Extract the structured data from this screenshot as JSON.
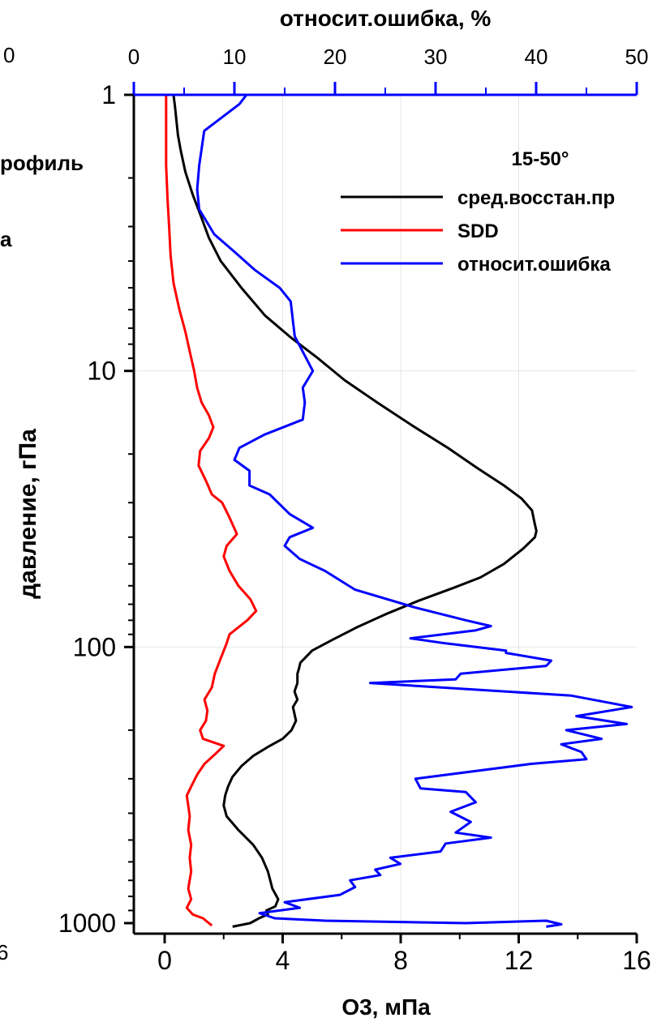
{
  "chart_data": {
    "type": "line",
    "top_axis": {
      "label": "относит.ошибка, %",
      "ticks": [
        "0",
        "10",
        "20",
        "30",
        "40",
        "50"
      ],
      "cut_tick": "0",
      "range": [
        0,
        50
      ],
      "color": "#0000ff"
    },
    "bottom_axis": {
      "label": "O3, мПа",
      "ticks": [
        "0",
        "4",
        "8",
        "12",
        "16"
      ],
      "cut_tick": "6",
      "range": [
        -1,
        16
      ]
    },
    "left_axis": {
      "label": "давление, гПа",
      "ticks": [
        "1",
        "10",
        "100",
        "1000"
      ],
      "scale": "log",
      "reversed": true,
      "range": [
        1,
        1050
      ]
    },
    "grid": true,
    "legend": {
      "title": "15-50°",
      "position": "top-right",
      "entries": [
        {
          "label": "сред.восстан.пр",
          "color": "#000000"
        },
        {
          "label": "SDD",
          "color": "#ff0000"
        },
        {
          "label": "относит.ошибка",
          "color": "#0000ff"
        }
      ]
    },
    "cut_labels": [
      "рофиль",
      "а"
    ],
    "series": [
      {
        "name": "сред.восстан.пр",
        "axis": "bottom",
        "color": "#000000",
        "points": [
          [
            0.3,
            1
          ],
          [
            0.35,
            1.1
          ],
          [
            0.45,
            1.4
          ],
          [
            0.55,
            1.6
          ],
          [
            0.7,
            1.9
          ],
          [
            0.95,
            2.3
          ],
          [
            1.2,
            2.7
          ],
          [
            1.5,
            3.3
          ],
          [
            1.9,
            4
          ],
          [
            2.6,
            5
          ],
          [
            3.4,
            6.3
          ],
          [
            4.3,
            7.6
          ],
          [
            5.2,
            9
          ],
          [
            6.1,
            10.8
          ],
          [
            7.2,
            13
          ],
          [
            8.4,
            15.8
          ],
          [
            9.6,
            19
          ],
          [
            10.6,
            22.5
          ],
          [
            11.5,
            26
          ],
          [
            12.1,
            29
          ],
          [
            12.45,
            32
          ],
          [
            12.5,
            34
          ],
          [
            12.55,
            36
          ],
          [
            12.6,
            38
          ],
          [
            12.55,
            40
          ],
          [
            12.15,
            44
          ],
          [
            11.5,
            50
          ],
          [
            10.7,
            56
          ],
          [
            9.8,
            61
          ],
          [
            8.6,
            68
          ],
          [
            7.5,
            76
          ],
          [
            6.5,
            85
          ],
          [
            5.7,
            94
          ],
          [
            5.0,
            103
          ],
          [
            4.6,
            114
          ],
          [
            4.55,
            120
          ],
          [
            4.5,
            125
          ],
          [
            4.5,
            135
          ],
          [
            4.4,
            145
          ],
          [
            4.5,
            155
          ],
          [
            4.35,
            165
          ],
          [
            4.4,
            175
          ],
          [
            4.45,
            185
          ],
          [
            4.3,
            200
          ],
          [
            4.0,
            215
          ],
          [
            3.5,
            230
          ],
          [
            3.0,
            248
          ],
          [
            2.6,
            270
          ],
          [
            2.3,
            295
          ],
          [
            2.15,
            320
          ],
          [
            2.05,
            345
          ],
          [
            2.0,
            375
          ],
          [
            2.1,
            410
          ],
          [
            2.5,
            460
          ],
          [
            3.0,
            520
          ],
          [
            3.3,
            580
          ],
          [
            3.5,
            650
          ],
          [
            3.65,
            750
          ],
          [
            3.85,
            820
          ],
          [
            3.75,
            870
          ],
          [
            3.45,
            900
          ],
          [
            3.5,
            930
          ],
          [
            3.2,
            960
          ],
          [
            2.9,
            1000
          ],
          [
            2.3,
            1030
          ]
        ]
      },
      {
        "name": "SDD",
        "axis": "bottom",
        "color": "#ff0000",
        "points": [
          [
            0.05,
            1
          ],
          [
            0.05,
            1.4
          ],
          [
            0.05,
            1.8
          ],
          [
            0.1,
            2.4
          ],
          [
            0.15,
            3
          ],
          [
            0.2,
            3.8
          ],
          [
            0.3,
            4.8
          ],
          [
            0.5,
            6
          ],
          [
            0.7,
            7.2
          ],
          [
            0.85,
            8.5
          ],
          [
            1.0,
            10
          ],
          [
            1.1,
            11.5
          ],
          [
            1.25,
            13
          ],
          [
            1.5,
            14.5
          ],
          [
            1.65,
            16
          ],
          [
            1.5,
            17.5
          ],
          [
            1.2,
            19.5
          ],
          [
            1.15,
            22
          ],
          [
            1.4,
            25
          ],
          [
            1.6,
            28
          ],
          [
            1.95,
            30
          ],
          [
            2.2,
            34
          ],
          [
            2.45,
            39
          ],
          [
            2.1,
            43
          ],
          [
            2.0,
            47
          ],
          [
            2.2,
            53
          ],
          [
            2.5,
            60
          ],
          [
            2.9,
            67
          ],
          [
            3.1,
            74
          ],
          [
            2.8,
            80
          ],
          [
            2.2,
            90
          ],
          [
            2.1,
            97
          ],
          [
            1.9,
            110
          ],
          [
            1.7,
            125
          ],
          [
            1.6,
            140
          ],
          [
            1.35,
            155
          ],
          [
            1.45,
            170
          ],
          [
            1.4,
            185
          ],
          [
            1.2,
            200
          ],
          [
            1.3,
            215
          ],
          [
            2.0,
            228
          ],
          [
            1.7,
            245
          ],
          [
            1.35,
            265
          ],
          [
            1.1,
            290
          ],
          [
            0.9,
            320
          ],
          [
            0.75,
            345
          ],
          [
            0.8,
            375
          ],
          [
            0.85,
            410
          ],
          [
            0.8,
            460
          ],
          [
            0.9,
            520
          ],
          [
            0.85,
            580
          ],
          [
            0.9,
            650
          ],
          [
            0.8,
            750
          ],
          [
            0.9,
            820
          ],
          [
            0.75,
            880
          ],
          [
            0.95,
            930
          ],
          [
            1.3,
            960
          ],
          [
            1.45,
            990
          ],
          [
            1.6,
            1020
          ]
        ]
      },
      {
        "name": "относит.ошибка",
        "axis": "top",
        "color": "#0000ff",
        "points": [
          [
            11.2,
            1
          ],
          [
            10.5,
            1.08
          ],
          [
            7,
            1.35
          ],
          [
            6.5,
            1.8
          ],
          [
            6.3,
            2.2
          ],
          [
            6.5,
            2.6
          ],
          [
            8,
            3.2
          ],
          [
            10,
            3.7
          ],
          [
            12,
            4.3
          ],
          [
            14.5,
            5
          ],
          [
            15.6,
            5.6
          ],
          [
            15.8,
            6.5
          ],
          [
            16,
            7.5
          ],
          [
            17.8,
            10
          ],
          [
            16.8,
            11.5
          ],
          [
            17,
            13
          ],
          [
            16.8,
            15
          ],
          [
            13,
            17
          ],
          [
            10.5,
            19
          ],
          [
            10,
            21
          ],
          [
            11.5,
            23
          ],
          [
            11.5,
            26
          ],
          [
            13.5,
            28
          ],
          [
            15.5,
            33
          ],
          [
            17.8,
            37
          ],
          [
            15.5,
            40
          ],
          [
            15,
            43
          ],
          [
            16.5,
            48
          ],
          [
            19,
            53
          ],
          [
            22,
            62
          ],
          [
            28,
            72
          ],
          [
            33,
            80
          ],
          [
            35.5,
            84
          ],
          [
            34,
            87
          ],
          [
            27.5,
            93
          ],
          [
            31,
            97
          ],
          [
            37,
            103
          ],
          [
            37,
            105
          ],
          [
            41.5,
            112
          ],
          [
            41,
            117
          ],
          [
            32.5,
            125
          ],
          [
            32,
            131
          ],
          [
            23.5,
            135
          ],
          [
            43.5,
            150
          ],
          [
            49.5,
            165
          ],
          [
            44,
            178
          ],
          [
            49,
            190
          ],
          [
            43,
            200
          ],
          [
            46.5,
            215
          ],
          [
            42.5,
            225
          ],
          [
            44.5,
            240
          ],
          [
            45,
            255
          ],
          [
            39.5,
            265
          ],
          [
            28,
            300
          ],
          [
            28.5,
            325
          ],
          [
            33,
            335
          ],
          [
            34,
            365
          ],
          [
            31.5,
            395
          ],
          [
            33.5,
            430
          ],
          [
            32,
            470
          ],
          [
            35.5,
            490
          ],
          [
            31,
            515
          ],
          [
            30.5,
            550
          ],
          [
            25.5,
            580
          ],
          [
            26.5,
            610
          ],
          [
            24,
            640
          ],
          [
            24.5,
            670
          ],
          [
            21.5,
            700
          ],
          [
            22,
            740
          ],
          [
            20.5,
            790
          ],
          [
            15,
            840
          ],
          [
            16.5,
            880
          ],
          [
            14.5,
            900
          ],
          [
            12.5,
            920
          ],
          [
            14,
            960
          ],
          [
            19,
            980
          ],
          [
            33,
            1000
          ],
          [
            41,
            980
          ],
          [
            42.5,
            1010
          ],
          [
            41,
            1030
          ]
        ]
      }
    ]
  }
}
